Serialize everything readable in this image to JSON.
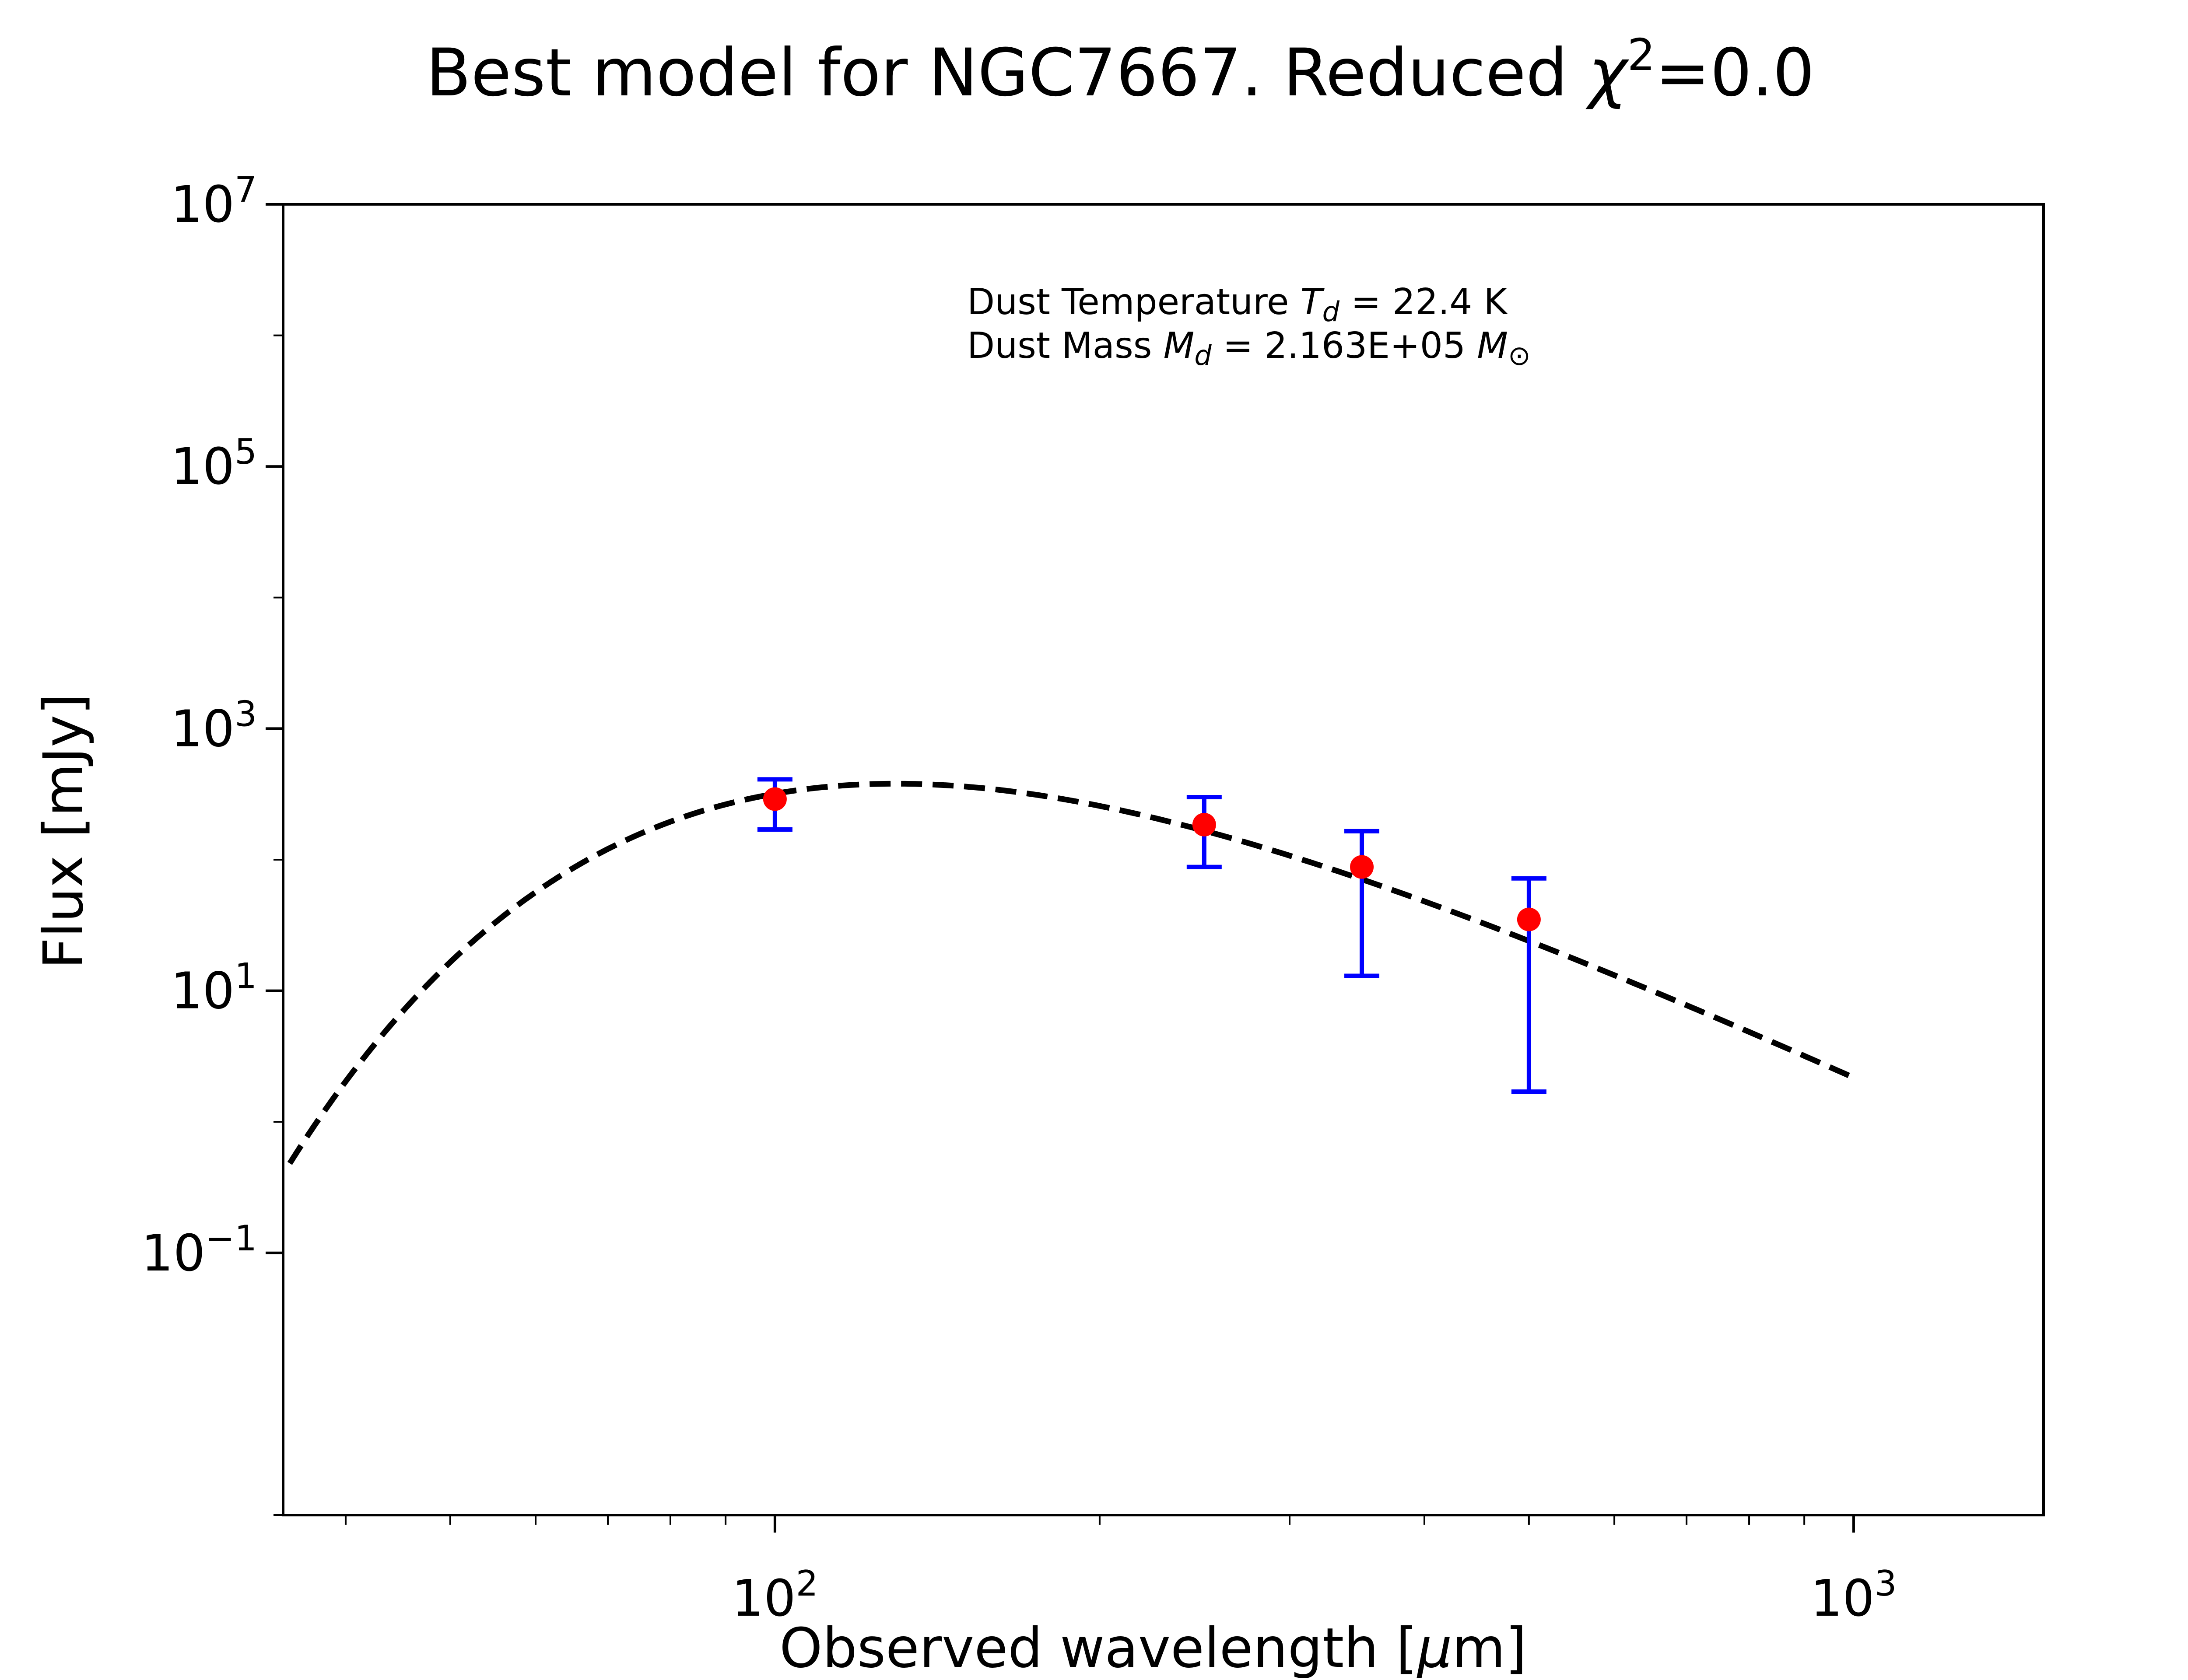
{
  "chart_data": {
    "type": "scatter",
    "title": "Best model for NGC7667. Reduced χ²=0.0",
    "xlabel": "Observed wavelength [μm]",
    "ylabel": "Flux [mJy]",
    "x_scale": "log",
    "y_scale": "log",
    "xlim": [
      35,
      1500
    ],
    "ylim": [
      0.001,
      10000000
    ],
    "x_ticks": [
      {
        "value": 100,
        "base": "10",
        "exp": "2"
      },
      {
        "value": 1000,
        "base": "10",
        "exp": "3"
      }
    ],
    "y_ticks": [
      {
        "value": 0.1,
        "base": "10",
        "exp": "−1"
      },
      {
        "value": 10,
        "base": "10",
        "exp": "1"
      },
      {
        "value": 1000,
        "base": "10",
        "exp": "3"
      },
      {
        "value": 100000,
        "base": "10",
        "exp": "5"
      },
      {
        "value": 10000000,
        "base": "10",
        "exp": "7"
      }
    ],
    "annotations": [
      {
        "text": "Dust Temperature T_d = 22.4 K"
      },
      {
        "text": "Dust Mass M_d = 2.163E+05 M_⊙"
      }
    ],
    "series": [
      {
        "kind": "model",
        "style": "dashed",
        "color": "#000000",
        "temperature_K": 22.4,
        "x_range": [
          35.5,
          1000
        ],
        "peak_flux_mJy": 380
      },
      {
        "kind": "observed",
        "marker_color": "#ff0000",
        "errorbar_color": "#0000ff",
        "points": [
          {
            "x": 100,
            "y": 290,
            "ylo": 170,
            "yhi": 410
          },
          {
            "x": 250,
            "y": 185,
            "ylo": 88,
            "yhi": 300
          },
          {
            "x": 350,
            "y": 88,
            "ylo": 13,
            "yhi": 165
          },
          {
            "x": 500,
            "y": 35,
            "ylo": 1.7,
            "yhi": 72
          }
        ]
      }
    ]
  }
}
